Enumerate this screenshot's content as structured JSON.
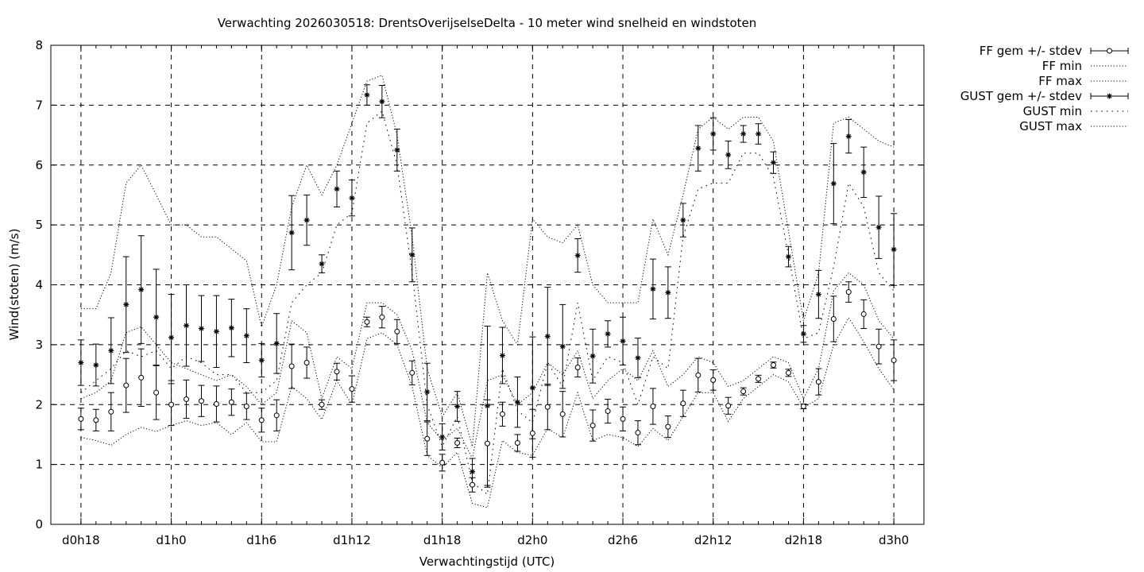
{
  "chart_data": {
    "type": "line",
    "title": "Verwachting 2026030518: DrentsOverijselseDelta - 10 meter wind snelheid en windstoten",
    "xlabel": "Verwachtingstijd (UTC)",
    "ylabel": "Wind(stoten) (m/s)",
    "ylim": [
      0,
      8
    ],
    "yticks": [
      "0",
      "1",
      "2",
      "3",
      "4",
      "5",
      "6",
      "7",
      "8"
    ],
    "xlim": [
      -2,
      56
    ],
    "xticks": [
      {
        "x": 0,
        "label": "d0h18"
      },
      {
        "x": 6,
        "label": "d1h0"
      },
      {
        "x": 12,
        "label": "d1h6"
      },
      {
        "x": 18,
        "label": "d1h12"
      },
      {
        "x": 24,
        "label": "d1h18"
      },
      {
        "x": 30,
        "label": "d2h0"
      },
      {
        "x": 36,
        "label": "d2h6"
      },
      {
        "x": 42,
        "label": "d2h12"
      },
      {
        "x": 48,
        "label": "d2h18"
      },
      {
        "x": 54,
        "label": "d3h0"
      }
    ],
    "grid": true,
    "legend_position": "outside-top-right",
    "x": [
      0,
      1,
      2,
      3,
      4,
      5,
      6,
      7,
      8,
      9,
      10,
      11,
      12,
      13,
      14,
      15,
      16,
      17,
      18,
      19,
      20,
      21,
      22,
      23,
      24,
      25,
      26,
      27,
      28,
      29,
      30,
      31,
      32,
      33,
      34,
      35,
      36,
      37,
      38,
      39,
      40,
      41,
      42,
      43,
      44,
      45,
      46,
      47,
      48,
      49,
      50,
      51,
      52,
      53,
      54
    ],
    "series": [
      {
        "name": "FF gem +/- stdev",
        "marker": "open-circle",
        "values": [
          1.76,
          1.74,
          1.88,
          2.32,
          2.45,
          2.2,
          2.0,
          2.09,
          2.06,
          2.01,
          2.04,
          1.97,
          1.74,
          1.82,
          2.64,
          2.7,
          2.0,
          2.55,
          2.26,
          3.38,
          3.46,
          3.22,
          2.53,
          1.43,
          1.03,
          1.36,
          0.66,
          1.35,
          1.84,
          1.36,
          1.52,
          1.96,
          1.84,
          2.62,
          1.65,
          1.89,
          1.76,
          1.53,
          1.97,
          1.63,
          2.02,
          2.49,
          2.41,
          1.98,
          2.22,
          2.43,
          2.66,
          2.53,
          1.97,
          2.38,
          3.43,
          3.88,
          3.51,
          2.97,
          2.74
        ],
        "stdev": [
          0.18,
          0.18,
          0.32,
          0.45,
          0.48,
          0.45,
          0.35,
          0.32,
          0.26,
          0.3,
          0.22,
          0.22,
          0.2,
          0.26,
          0.37,
          0.26,
          0.08,
          0.14,
          0.22,
          0.08,
          0.18,
          0.2,
          0.2,
          0.28,
          0.14,
          0.08,
          0.12,
          0.73,
          0.2,
          0.14,
          0.4,
          0.38,
          0.38,
          0.16,
          0.26,
          0.2,
          0.2,
          0.2,
          0.3,
          0.18,
          0.22,
          0.28,
          0.17,
          0.14,
          0.06,
          0.06,
          0.05,
          0.06,
          0.04,
          0.22,
          0.38,
          0.17,
          0.24,
          0.29,
          0.34
        ]
      },
      {
        "name": "FF min",
        "line": "dotted",
        "values": [
          1.45,
          1.4,
          1.32,
          1.5,
          1.62,
          1.55,
          1.65,
          1.73,
          1.65,
          1.7,
          1.5,
          1.7,
          1.38,
          1.38,
          2.3,
          2.1,
          1.75,
          2.4,
          2.0,
          3.1,
          3.2,
          3.0,
          2.3,
          1.15,
          0.95,
          1.2,
          0.35,
          0.28,
          1.4,
          1.2,
          1.15,
          1.6,
          1.45,
          2.2,
          1.4,
          1.5,
          1.45,
          1.3,
          1.6,
          1.4,
          1.8,
          2.2,
          2.2,
          1.72,
          2.1,
          2.3,
          2.5,
          2.38,
          1.95,
          2.1,
          3.0,
          3.45,
          3.05,
          2.6,
          2.25
        ]
      },
      {
        "name": "FF max",
        "line": "dotted",
        "values": [
          2.1,
          2.2,
          2.4,
          3.2,
          3.3,
          3.0,
          2.7,
          2.6,
          2.5,
          2.4,
          2.5,
          2.3,
          2.0,
          2.2,
          3.4,
          3.2,
          2.1,
          2.8,
          2.6,
          3.7,
          3.7,
          3.5,
          2.9,
          1.7,
          1.4,
          1.6,
          1.1,
          2.4,
          2.5,
          2.0,
          2.2,
          2.7,
          2.5,
          2.9,
          2.1,
          2.4,
          2.6,
          2.4,
          2.9,
          2.3,
          2.5,
          2.8,
          2.7,
          2.3,
          2.4,
          2.6,
          2.8,
          2.7,
          2.1,
          2.6,
          3.9,
          4.2,
          4.0,
          3.4,
          3.1
        ]
      },
      {
        "name": "GUST gem +/- stdev",
        "marker": "star",
        "values": [
          2.7,
          2.66,
          2.9,
          3.67,
          3.92,
          3.46,
          3.12,
          3.32,
          3.27,
          3.22,
          3.28,
          3.15,
          2.74,
          3.02,
          4.87,
          5.08,
          4.35,
          5.6,
          5.45,
          7.17,
          7.06,
          6.25,
          4.5,
          2.21,
          1.46,
          1.97,
          0.88,
          1.98,
          2.82,
          2.04,
          2.28,
          3.14,
          2.97,
          4.49,
          2.81,
          3.18,
          3.06,
          2.78,
          3.93,
          3.87,
          5.08,
          6.28,
          6.52,
          6.17,
          6.52,
          6.52,
          6.04,
          4.47,
          3.18,
          3.84,
          5.69,
          6.48,
          5.88,
          4.96,
          4.59
        ],
        "stdev": [
          0.38,
          0.35,
          0.55,
          0.8,
          0.9,
          0.8,
          0.72,
          0.68,
          0.55,
          0.6,
          0.48,
          0.45,
          0.28,
          0.5,
          0.62,
          0.42,
          0.15,
          0.3,
          0.3,
          0.17,
          0.27,
          0.35,
          0.45,
          0.48,
          0.22,
          0.25,
          0.22,
          1.33,
          0.47,
          0.42,
          0.85,
          0.82,
          0.7,
          0.28,
          0.45,
          0.22,
          0.4,
          0.33,
          0.5,
          0.43,
          0.28,
          0.38,
          0.27,
          0.23,
          0.14,
          0.17,
          0.18,
          0.17,
          0.14,
          0.4,
          0.67,
          0.28,
          0.42,
          0.52,
          0.6
        ]
      },
      {
        "name": "GUST min",
        "line": "dotted-sparse",
        "values": [
          2.2,
          2.4,
          2.6,
          2.9,
          2.8,
          2.9,
          2.6,
          2.8,
          2.7,
          2.5,
          2.5,
          2.2,
          2.2,
          2.4,
          3.7,
          4.0,
          4.2,
          5.0,
          5.2,
          6.7,
          6.9,
          6.0,
          4.2,
          2.0,
          1.3,
          1.8,
          0.7,
          0.5,
          2.6,
          1.9,
          1.7,
          2.7,
          2.3,
          3.7,
          2.4,
          2.8,
          2.7,
          2.0,
          2.8,
          2.6,
          4.8,
          5.6,
          5.7,
          5.7,
          6.2,
          6.2,
          5.8,
          4.5,
          3.1,
          3.2,
          4.3,
          5.7,
          5.3,
          4.2,
          3.9
        ]
      },
      {
        "name": "GUST max",
        "line": "dotted",
        "values": [
          3.6,
          3.6,
          4.2,
          5.7,
          6.0,
          5.5,
          5.0,
          5.0,
          4.8,
          4.8,
          4.6,
          4.4,
          3.3,
          4.0,
          5.3,
          6.0,
          5.5,
          6.0,
          6.7,
          7.4,
          7.5,
          6.5,
          4.8,
          2.6,
          1.8,
          2.2,
          1.3,
          4.2,
          3.4,
          3.0,
          5.1,
          4.8,
          4.7,
          5.0,
          4.0,
          3.7,
          3.7,
          3.7,
          5.1,
          4.5,
          5.5,
          6.6,
          6.8,
          6.6,
          6.8,
          6.8,
          6.4,
          4.9,
          3.4,
          4.2,
          6.7,
          6.8,
          6.6,
          6.4,
          6.3
        ]
      }
    ]
  }
}
